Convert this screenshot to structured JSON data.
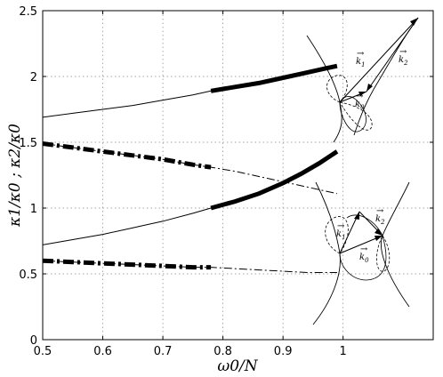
{
  "chart_data": {
    "type": "line",
    "xlabel": "ω0/N",
    "ylabel": "κ1/κ0 ; κ2/κ0",
    "xlim": [
      0.5,
      1.15
    ],
    "ylim": [
      0,
      2.5
    ],
    "xticks": [
      "0.5",
      "0.6",
      "0.7",
      "0.8",
      "0.9",
      "1"
    ],
    "xtick_values": [
      0.5,
      0.6,
      0.7,
      0.8,
      0.9,
      1.0
    ],
    "yticks": [
      "0",
      "0.5",
      "1",
      "1.5",
      "2",
      "2.5"
    ],
    "ytick_values": [
      0,
      0.5,
      1.0,
      1.5,
      2.0,
      2.5
    ],
    "grid": true,
    "series": [
      {
        "style": "solid",
        "color": "#000000",
        "thick_from": 0.78,
        "x": [
          0.5,
          0.55,
          0.6,
          0.65,
          0.7,
          0.75,
          0.78,
          0.82,
          0.86,
          0.9,
          0.94,
          0.97,
          0.99
        ],
        "y": [
          1.69,
          1.72,
          1.75,
          1.78,
          1.82,
          1.86,
          1.89,
          1.92,
          1.95,
          1.99,
          2.03,
          2.06,
          2.08
        ]
      },
      {
        "style": "solid",
        "color": "#000000",
        "thick_from": 0.78,
        "x": [
          0.5,
          0.55,
          0.6,
          0.65,
          0.7,
          0.75,
          0.78,
          0.82,
          0.86,
          0.9,
          0.93,
          0.96,
          0.98,
          0.99
        ],
        "y": [
          0.72,
          0.76,
          0.8,
          0.85,
          0.9,
          0.96,
          1.0,
          1.05,
          1.11,
          1.19,
          1.26,
          1.34,
          1.4,
          1.43
        ]
      },
      {
        "style": "dashdot",
        "color": "#000000",
        "thick_from": 0.5,
        "thick_to": 0.78,
        "x": [
          0.5,
          0.55,
          0.6,
          0.65,
          0.7,
          0.75,
          0.78,
          0.82,
          0.86,
          0.9,
          0.94,
          0.97,
          0.99
        ],
        "y": [
          1.49,
          1.46,
          1.43,
          1.4,
          1.37,
          1.33,
          1.31,
          1.28,
          1.24,
          1.2,
          1.16,
          1.13,
          1.11
        ]
      },
      {
        "style": "dashdot",
        "color": "#000000",
        "thick_from": 0.5,
        "thick_to": 0.78,
        "x": [
          0.5,
          0.55,
          0.6,
          0.65,
          0.7,
          0.75,
          0.78,
          0.82,
          0.86,
          0.9,
          0.94,
          0.97,
          0.99
        ],
        "y": [
          0.6,
          0.59,
          0.58,
          0.57,
          0.56,
          0.55,
          0.55,
          0.54,
          0.53,
          0.52,
          0.51,
          0.51,
          0.51
        ]
      }
    ],
    "insets": [
      {
        "labels": [
          "k1",
          "k2",
          "k0"
        ],
        "label_prefix": "→"
      },
      {
        "labels": [
          "k1",
          "k2",
          "k0"
        ],
        "label_prefix": "→"
      }
    ]
  }
}
